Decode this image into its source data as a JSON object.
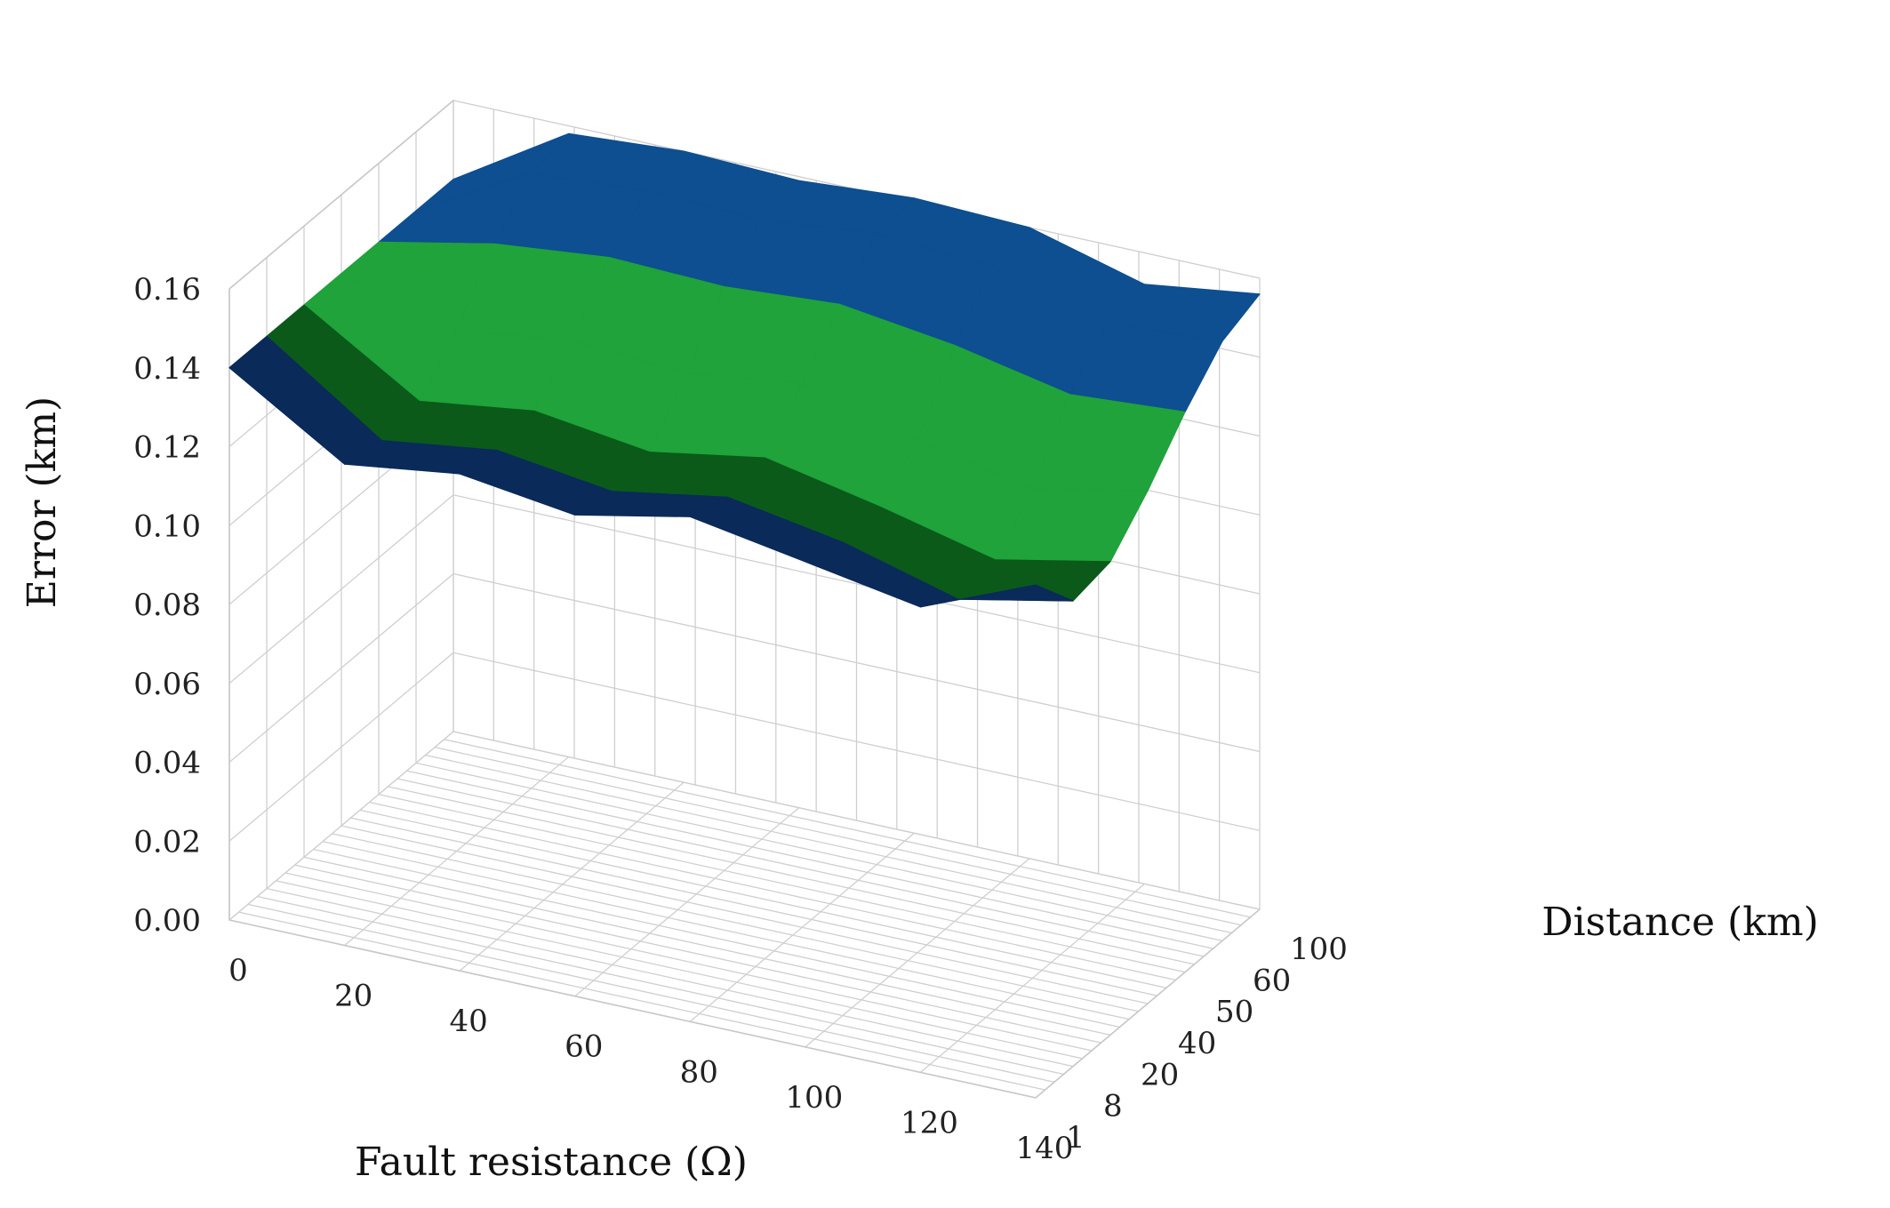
{
  "chart_data": {
    "type": "surface",
    "zlabel": "Error (km)",
    "xlabel": "Fault resistance (Ω)",
    "ylabel": "Distance (km)",
    "z_ticks": [
      "0.00",
      "0.02",
      "0.04",
      "0.06",
      "0.08",
      "0.10",
      "0.12",
      "0.14",
      "0.16"
    ],
    "zlim": [
      0,
      0.16
    ],
    "fault_resistance": [
      "0",
      "20",
      "40",
      "60",
      "80",
      "100",
      "120",
      "140"
    ],
    "distance": [
      "1",
      "8",
      "20",
      "40",
      "50",
      "60",
      "100"
    ],
    "z": [
      [
        0.14,
        0.14,
        0.14,
        0.14,
        0.14,
        0.14,
        0.14
      ],
      [
        0.122,
        0.12,
        0.122,
        0.132,
        0.146,
        0.156,
        0.158
      ],
      [
        0.126,
        0.124,
        0.126,
        0.136,
        0.149,
        0.158,
        0.16
      ],
      [
        0.122,
        0.12,
        0.122,
        0.134,
        0.148,
        0.157,
        0.159
      ],
      [
        0.128,
        0.125,
        0.127,
        0.138,
        0.15,
        0.16,
        0.161
      ],
      [
        0.123,
        0.12,
        0.121,
        0.13,
        0.146,
        0.158,
        0.16
      ],
      [
        0.118,
        0.112,
        0.114,
        0.124,
        0.14,
        0.15,
        0.152
      ],
      [
        0.13,
        0.118,
        0.12,
        0.13,
        0.142,
        0.152,
        0.156
      ]
    ],
    "band_colors": [
      "#0a2a5a",
      "#0b5a1a",
      "#1fa33a",
      "#1fa33a",
      "#0d4f91",
      "#0d4f91"
    ],
    "grid": true
  }
}
